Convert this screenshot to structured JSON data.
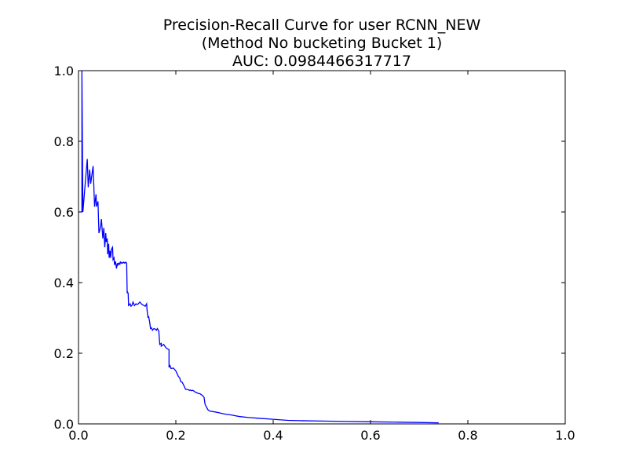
{
  "chart_data": {
    "type": "line",
    "title_lines": [
      "Precision-Recall Curve for user RCNN_NEW",
      "(Method No bucketing Bucket 1)",
      "AUC: 0.0984466317717"
    ],
    "xlabel": "",
    "ylabel": "",
    "xlim": [
      0.0,
      1.0
    ],
    "ylim": [
      0.0,
      1.0
    ],
    "x_ticks": [
      "0.0",
      "0.2",
      "0.4",
      "0.6",
      "0.8",
      "1.0"
    ],
    "y_ticks": [
      "0.0",
      "0.2",
      "0.4",
      "0.6",
      "0.8",
      "1.0"
    ],
    "grid": false,
    "legend": "none",
    "line_color": "#0000ff",
    "series": [
      {
        "recall": [
          0.0,
          0.007,
          0.007,
          0.009,
          0.012,
          0.015,
          0.018,
          0.02,
          0.023,
          0.025,
          0.028,
          0.03,
          0.033,
          0.036,
          0.037,
          0.04,
          0.042,
          0.044,
          0.046,
          0.047,
          0.05,
          0.052,
          0.054,
          0.056,
          0.057,
          0.059,
          0.06,
          0.062,
          0.063,
          0.065,
          0.066,
          0.068,
          0.07,
          0.071,
          0.073,
          0.074,
          0.076,
          0.078,
          0.08,
          0.081,
          0.083,
          0.085,
          0.086,
          0.088,
          0.089,
          0.091,
          0.093,
          0.095,
          0.097,
          0.099,
          0.1,
          0.1,
          0.102,
          0.103,
          0.103,
          0.106,
          0.108,
          0.11,
          0.112,
          0.115,
          0.118,
          0.12,
          0.123,
          0.126,
          0.129,
          0.132,
          0.135,
          0.137,
          0.14,
          0.141,
          0.143,
          0.144,
          0.146,
          0.148,
          0.15,
          0.152,
          0.155,
          0.158,
          0.16,
          0.162,
          0.165,
          0.167,
          0.17,
          0.17,
          0.175,
          0.18,
          0.186,
          0.186,
          0.188,
          0.19,
          0.195,
          0.2,
          0.205,
          0.208,
          0.21,
          0.213,
          0.216,
          0.22,
          0.225,
          0.228,
          0.23,
          0.232,
          0.235,
          0.24,
          0.245,
          0.25,
          0.255,
          0.258,
          0.26,
          0.262,
          0.264,
          0.266,
          0.27,
          0.28,
          0.29,
          0.3,
          0.315,
          0.33,
          0.35,
          0.37,
          0.4,
          0.43,
          0.46,
          0.5,
          0.55,
          0.6,
          0.65,
          0.7,
          0.74
        ],
        "precision": [
          0.6,
          0.6,
          1.0,
          0.6,
          0.65,
          0.7,
          0.75,
          0.67,
          0.72,
          0.68,
          0.71,
          0.73,
          0.615,
          0.65,
          0.615,
          0.63,
          0.54,
          0.55,
          0.565,
          0.58,
          0.525,
          0.555,
          0.5,
          0.54,
          0.515,
          0.525,
          0.48,
          0.51,
          0.47,
          0.49,
          0.47,
          0.495,
          0.5,
          0.465,
          0.47,
          0.45,
          0.46,
          0.44,
          0.455,
          0.45,
          0.455,
          0.452,
          0.458,
          0.455,
          0.457,
          0.455,
          0.458,
          0.455,
          0.458,
          0.455,
          0.37,
          0.375,
          0.37,
          0.333,
          0.335,
          0.34,
          0.333,
          0.336,
          0.345,
          0.335,
          0.34,
          0.338,
          0.34,
          0.345,
          0.34,
          0.337,
          0.335,
          0.333,
          0.34,
          0.32,
          0.3,
          0.305,
          0.29,
          0.27,
          0.272,
          0.265,
          0.27,
          0.268,
          0.265,
          0.27,
          0.263,
          0.225,
          0.228,
          0.22,
          0.225,
          0.215,
          0.21,
          0.16,
          0.165,
          0.157,
          0.158,
          0.15,
          0.135,
          0.13,
          0.12,
          0.118,
          0.11,
          0.098,
          0.097,
          0.095,
          0.096,
          0.094,
          0.095,
          0.09,
          0.087,
          0.085,
          0.08,
          0.075,
          0.056,
          0.05,
          0.045,
          0.04,
          0.036,
          0.034,
          0.031,
          0.028,
          0.025,
          0.021,
          0.018,
          0.016,
          0.013,
          0.01,
          0.009,
          0.008,
          0.007,
          0.006,
          0.005,
          0.004,
          0.003
        ]
      }
    ]
  }
}
